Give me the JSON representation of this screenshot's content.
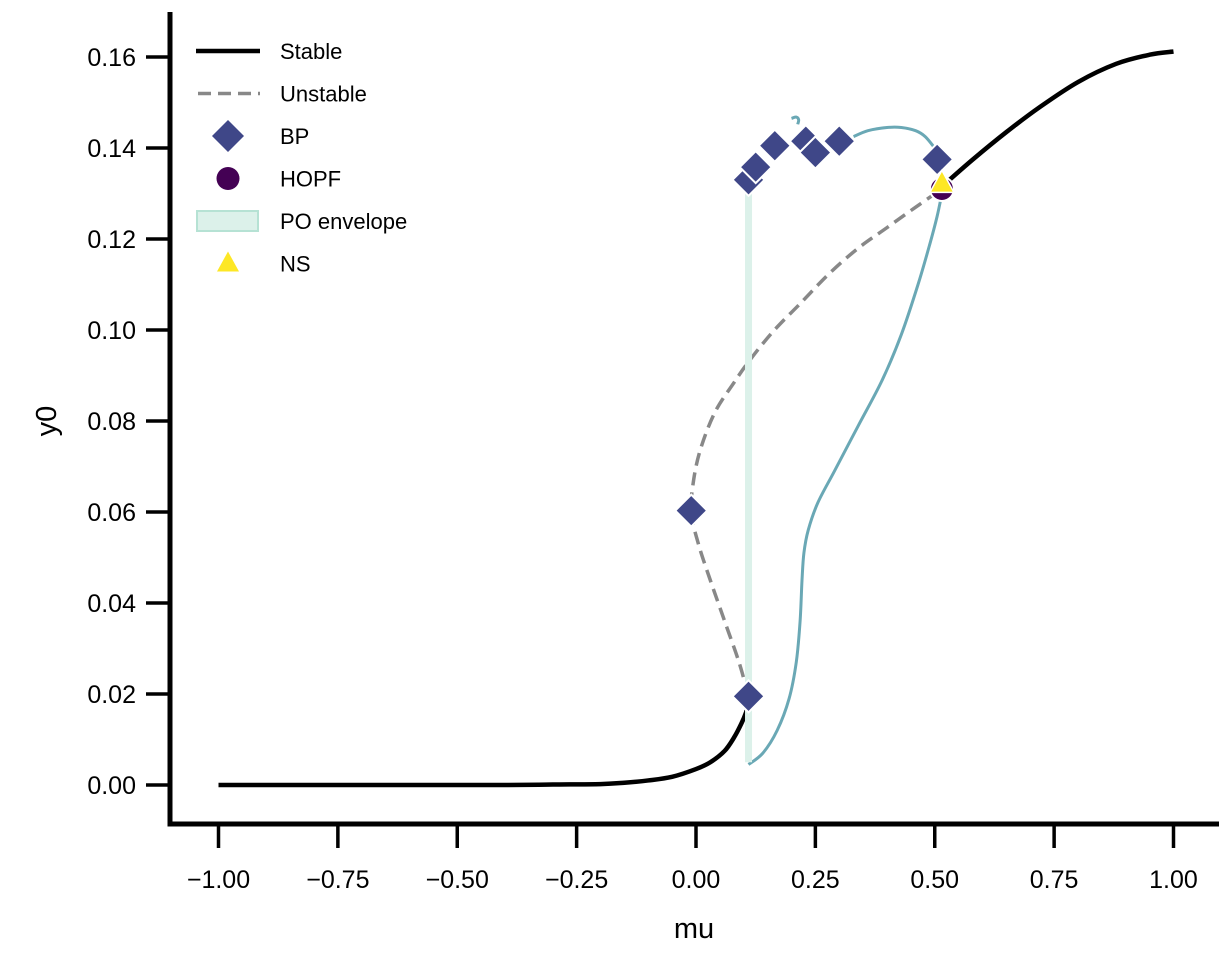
{
  "chart_data": {
    "type": "line",
    "title": "",
    "xlabel": "mu",
    "ylabel": "y0",
    "xlim": [
      -1.1,
      1.1
    ],
    "ylim": [
      -0.008,
      0.169
    ],
    "grid": false,
    "legend_placement": "top-left",
    "x_ticks": [
      -1.0,
      -0.75,
      -0.5,
      -0.25,
      0.0,
      0.25,
      0.5,
      0.75,
      1.0
    ],
    "x_tick_labels": [
      "−1.00",
      "−0.75",
      "−0.50",
      "−0.25",
      "0.00",
      "0.25",
      "0.50",
      "0.75",
      "1.00"
    ],
    "y_ticks": [
      0.0,
      0.02,
      0.04,
      0.06,
      0.08,
      0.1,
      0.12,
      0.14,
      0.16
    ],
    "y_tick_labels": [
      "0.00",
      "0.02",
      "0.04",
      "0.06",
      "0.08",
      "0.10",
      "0.12",
      "0.14",
      "0.16"
    ],
    "colors": {
      "stable": "#000000",
      "unstable": "#888888",
      "bp": "#3f4788",
      "hopf": "#440154",
      "po_fill": "#dcf1ea",
      "po_edge": "#b6e2d4",
      "po_curve": "#6aa8b5",
      "ns": "#fde725"
    },
    "legend": [
      {
        "label": "Stable",
        "kind": "solid-line"
      },
      {
        "label": "Unstable",
        "kind": "dashed-line"
      },
      {
        "label": "BP",
        "kind": "diamond"
      },
      {
        "label": "HOPF",
        "kind": "circle"
      },
      {
        "label": "PO envelope",
        "kind": "patch"
      },
      {
        "label": "NS",
        "kind": "triangle"
      }
    ],
    "series": [
      {
        "name": "Stable (lower)",
        "style": "stable",
        "x": [
          -1.0,
          -0.8,
          -0.6,
          -0.4,
          -0.3,
          -0.2,
          -0.15,
          -0.1,
          -0.05,
          0.0,
          0.03,
          0.06,
          0.08,
          0.095,
          0.105,
          0.11
        ],
        "y": [
          0.0,
          0.0,
          0.0,
          0.0,
          0.0001,
          0.0002,
          0.0005,
          0.001,
          0.0018,
          0.0035,
          0.005,
          0.0075,
          0.0105,
          0.0135,
          0.016,
          0.018
        ]
      },
      {
        "name": "Unstable",
        "style": "unstable",
        "x": [
          0.11,
          0.09,
          0.06,
          0.03,
          0.005,
          -0.01,
          -0.005,
          0.01,
          0.04,
          0.08,
          0.11,
          0.16,
          0.22,
          0.28,
          0.34,
          0.4,
          0.46,
          0.515
        ],
        "y": [
          0.0195,
          0.027,
          0.036,
          0.045,
          0.053,
          0.06,
          0.067,
          0.074,
          0.082,
          0.0885,
          0.093,
          0.0995,
          0.106,
          0.1125,
          0.118,
          0.1225,
          0.127,
          0.131
        ]
      },
      {
        "name": "Stable (upper)",
        "style": "stable",
        "x": [
          0.52,
          0.58,
          0.65,
          0.72,
          0.8,
          0.88,
          0.95,
          1.0
        ],
        "y": [
          0.132,
          0.1375,
          0.1435,
          0.149,
          0.1545,
          0.1585,
          0.1605,
          0.1612
        ]
      },
      {
        "name": "PO envelope (lower edge)",
        "style": "po",
        "x": [
          0.11,
          0.14,
          0.17,
          0.195,
          0.21,
          0.218,
          0.222,
          0.226,
          0.235,
          0.255,
          0.29,
          0.34,
          0.39,
          0.43,
          0.465,
          0.49,
          0.505,
          0.515
        ],
        "y": [
          0.0045,
          0.007,
          0.012,
          0.019,
          0.027,
          0.036,
          0.045,
          0.051,
          0.056,
          0.062,
          0.069,
          0.079,
          0.089,
          0.099,
          0.11,
          0.119,
          0.125,
          0.13
        ]
      },
      {
        "name": "PO envelope (upper edge)",
        "style": "po",
        "x": [
          0.33,
          0.36,
          0.4,
          0.43,
          0.46,
          0.48,
          0.5
        ],
        "y": [
          0.1425,
          0.1438,
          0.1445,
          0.1445,
          0.1438,
          0.1425,
          0.14
        ]
      },
      {
        "name": "PO envelope (hook)",
        "style": "po",
        "x": [
          0.2,
          0.21,
          0.215,
          0.213
        ],
        "y": [
          0.1465,
          0.1468,
          0.1462,
          0.1452
        ]
      },
      {
        "name": "PO envelope (band)",
        "style": "po-band",
        "x": [
          0.11,
          0.11
        ],
        "y": [
          0.005,
          0.133
        ]
      }
    ],
    "points": {
      "BP": [
        {
          "x": 0.11,
          "y": 0.0195
        },
        {
          "x": -0.01,
          "y": 0.0603
        },
        {
          "x": 0.11,
          "y": 0.133
        },
        {
          "x": 0.125,
          "y": 0.1358
        },
        {
          "x": 0.165,
          "y": 0.1405
        },
        {
          "x": 0.23,
          "y": 0.1415
        },
        {
          "x": 0.25,
          "y": 0.139
        },
        {
          "x": 0.3,
          "y": 0.1415
        },
        {
          "x": 0.505,
          "y": 0.1375
        }
      ],
      "HOPF": [
        {
          "x": 0.515,
          "y": 0.131
        }
      ],
      "NS": [
        {
          "x": 0.515,
          "y": 0.132
        }
      ]
    }
  }
}
